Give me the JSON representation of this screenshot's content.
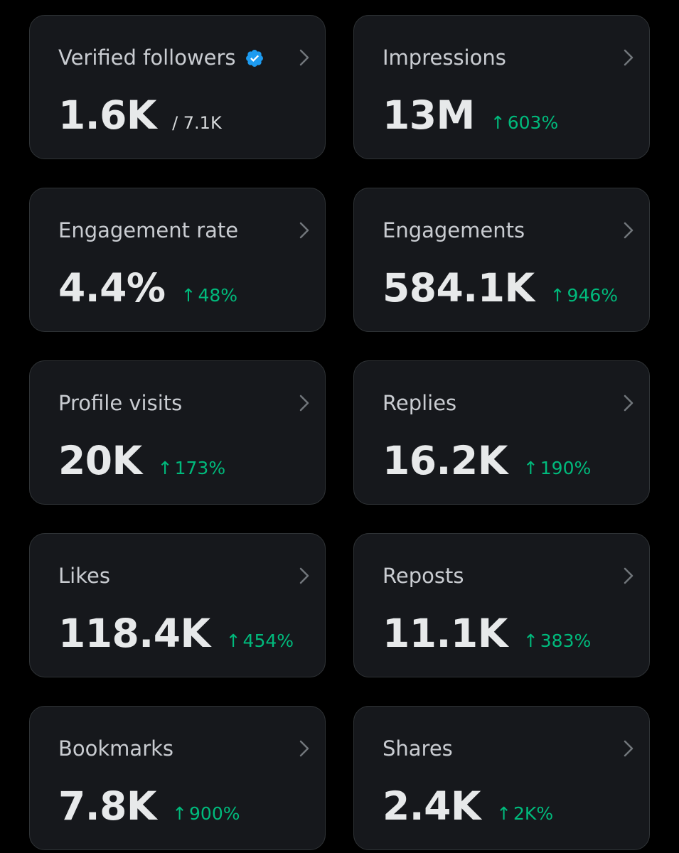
{
  "colors": {
    "background": "#000000",
    "card_background": "#16181c",
    "card_border": "#2f3336",
    "title": "#c9ccd1",
    "value": "#e7e9ea",
    "positive_change": "#00ba7c",
    "verified_badge": "#1d9bf0"
  },
  "icons": {
    "chevron": "chevron-right-icon",
    "verified": "verified-badge-icon",
    "change": "arrow-up-icon"
  },
  "cards": [
    {
      "title": "Verified followers",
      "value": "1.6K",
      "sub": "/ 7.1K"
    },
    {
      "title": "Impressions",
      "value": "13M",
      "change": "603%"
    },
    {
      "title": "Engagement rate",
      "value": "4.4%",
      "change": "48%"
    },
    {
      "title": "Engagements",
      "value": "584.1K",
      "change": "946%"
    },
    {
      "title": "Profile visits",
      "value": "20K",
      "change": "173%"
    },
    {
      "title": "Replies",
      "value": "16.2K",
      "change": "190%"
    },
    {
      "title": "Likes",
      "value": "118.4K",
      "change": "454%"
    },
    {
      "title": "Reposts",
      "value": "11.1K",
      "change": "383%"
    },
    {
      "title": "Bookmarks",
      "value": "7.8K",
      "change": "900%"
    },
    {
      "title": "Shares",
      "value": "2.4K",
      "change": "2K%"
    }
  ]
}
